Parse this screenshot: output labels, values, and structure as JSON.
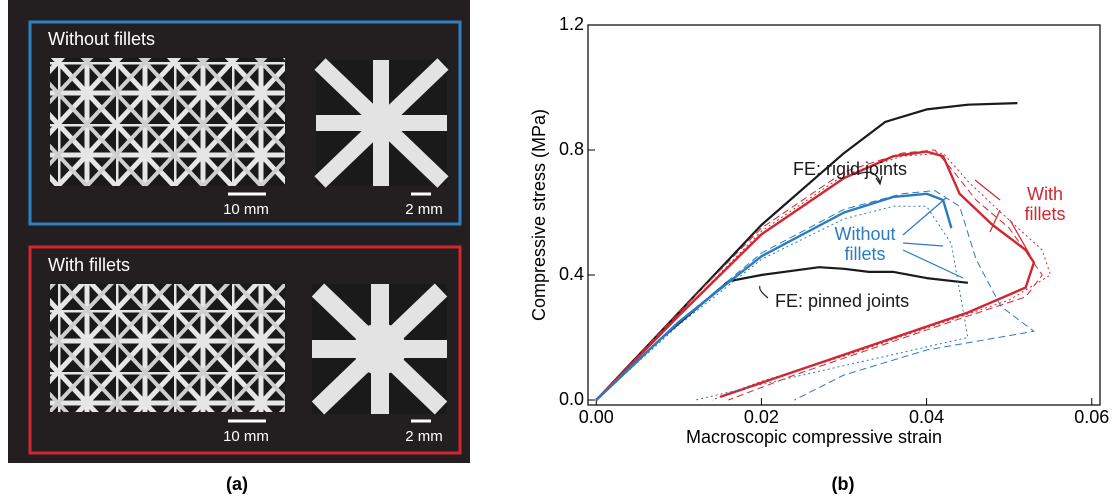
{
  "panel_a": {
    "top": {
      "title": "Without fillets",
      "scale_left": "10 mm",
      "scale_right": "2 mm"
    },
    "bottom": {
      "title": "With fillets",
      "scale_left": "10 mm",
      "scale_right": "2 mm"
    }
  },
  "captions": {
    "a": "(a)",
    "b": "(b)"
  },
  "chart_data": {
    "type": "line",
    "xlabel": "Macroscopic compressive strain",
    "ylabel": "Compressive stress (MPa)",
    "xlim": [
      -0.001,
      0.061
    ],
    "ylim": [
      -0.016,
      1.2
    ],
    "xticks": [
      {
        "value": 0,
        "label": "0.00"
      },
      {
        "value": 0.02,
        "label": "0.02"
      },
      {
        "value": 0.04,
        "label": "0.04"
      },
      {
        "value": 0.06,
        "label": "0.06"
      }
    ],
    "yticks": [
      {
        "value": 0,
        "label": "0.0"
      },
      0.4,
      0.8,
      1.2
    ],
    "annotations": [
      "FE: rigid joints",
      "FE: pinned joints",
      "Without\nfillets",
      "With\nfillets"
    ],
    "series": [
      {
        "color": "#1a1a1a",
        "linestyle": "solid",
        "linewidth": 2.2,
        "x": [
          0,
          0.01,
          0.02,
          0.03,
          0.035,
          0.04,
          0.045,
          0.051
        ],
        "values": [
          0,
          0.28,
          0.56,
          0.79,
          0.89,
          0.93,
          0.945,
          0.95
        ]
      },
      {
        "color": "#1a1a1a",
        "linestyle": "solid",
        "linewidth": 2.2,
        "x": [
          0,
          0.008,
          0.016,
          0.02,
          0.027,
          0.03,
          0.033,
          0.036,
          0.04,
          0.045
        ],
        "values": [
          0,
          0.2,
          0.38,
          0.4,
          0.425,
          0.42,
          0.41,
          0.41,
          0.39,
          0.375
        ]
      },
      {
        "color": "#d22630",
        "linestyle": "dashed",
        "linewidth": 1,
        "x": [
          0,
          0.01,
          0.02,
          0.03,
          0.037,
          0.041,
          0.043,
          0.046,
          0.05,
          0.054,
          0.052,
          0.044,
          0.034,
          0.024,
          0.016
        ],
        "values": [
          0,
          0.28,
          0.55,
          0.73,
          0.79,
          0.8,
          0.74,
          0.64,
          0.55,
          0.4,
          0.33,
          0.26,
          0.17,
          0.08,
          0
        ]
      },
      {
        "color": "#d22630",
        "linestyle": "dotted",
        "linewidth": 1,
        "x": [
          0,
          0.01,
          0.02,
          0.03,
          0.037,
          0.042,
          0.045,
          0.049,
          0.054,
          0.055,
          0.05,
          0.04,
          0.03,
          0.02,
          0.014
        ],
        "values": [
          0,
          0.27,
          0.54,
          0.72,
          0.78,
          0.79,
          0.7,
          0.6,
          0.48,
          0.4,
          0.32,
          0.23,
          0.14,
          0.06,
          0
        ]
      },
      {
        "color": "#d22630",
        "linestyle": "solid",
        "linewidth": 2.4,
        "x": [
          0,
          0.01,
          0.02,
          0.03,
          0.036,
          0.04,
          0.042,
          0.044,
          0.048,
          0.052,
          0.053,
          0.052,
          0.045,
          0.035,
          0.025,
          0.015
        ],
        "values": [
          0,
          0.27,
          0.53,
          0.71,
          0.78,
          0.795,
          0.78,
          0.66,
          0.56,
          0.48,
          0.44,
          0.36,
          0.28,
          0.19,
          0.1,
          0.01
        ]
      },
      {
        "color": "#2b7bc0",
        "linestyle": "dashed",
        "linewidth": 1,
        "x": [
          0,
          0.01,
          0.02,
          0.03,
          0.037,
          0.041,
          0.044,
          0.046,
          0.049,
          0.053,
          0.04,
          0.03,
          0.024
        ],
        "values": [
          0,
          0.25,
          0.47,
          0.61,
          0.66,
          0.67,
          0.62,
          0.45,
          0.3,
          0.22,
          0.16,
          0.08,
          0
        ]
      },
      {
        "color": "#2b7bc0",
        "linestyle": "dotted",
        "linewidth": 1,
        "x": [
          0,
          0.01,
          0.02,
          0.03,
          0.036,
          0.04,
          0.043,
          0.044,
          0.045,
          0.035,
          0.025,
          0.012
        ],
        "values": [
          0,
          0.24,
          0.45,
          0.58,
          0.62,
          0.62,
          0.5,
          0.35,
          0.2,
          0.14,
          0.08,
          0
        ]
      },
      {
        "color": "#2b7bc0",
        "linestyle": "solid",
        "linewidth": 2.4,
        "x": [
          0,
          0.01,
          0.02,
          0.03,
          0.036,
          0.04,
          0.042,
          0.043
        ],
        "values": [
          0,
          0.25,
          0.46,
          0.6,
          0.65,
          0.66,
          0.64,
          0.55
        ]
      }
    ]
  }
}
